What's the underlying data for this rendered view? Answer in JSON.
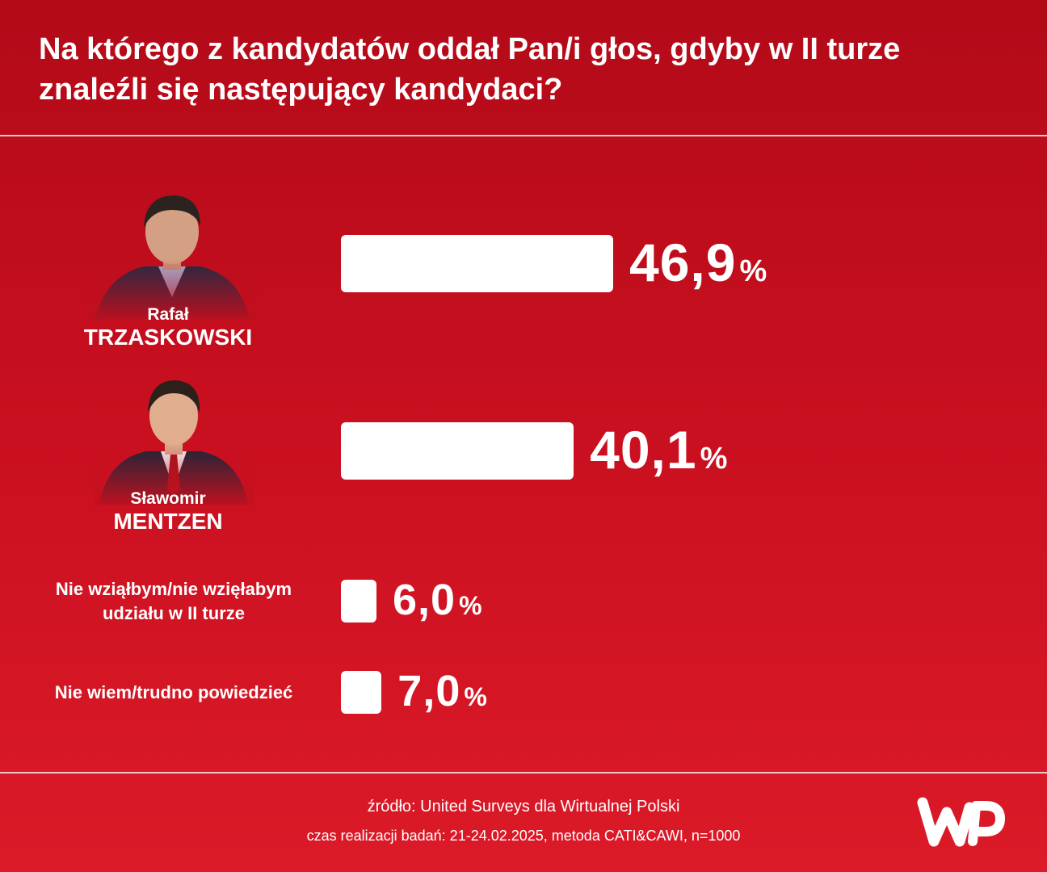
{
  "header": {
    "title_line1": "Na którego z kandydatów oddał Pan/i głos, gdyby w II turze",
    "title_line2": "znaleźli się następujący kandydaci?"
  },
  "chart_data": {
    "type": "bar",
    "orientation": "horizontal",
    "categories": [
      "Rafał TRZASKOWSKI",
      "Sławomir MENTZEN",
      "Nie wziąłbym/nie wzięłabym udziału w II turze",
      "Nie wiem/trudno powiedzieć"
    ],
    "values": [
      46.9,
      40.1,
      6.0,
      7.0
    ],
    "value_labels": [
      "46,9",
      "40,1",
      "6,0",
      "7,0"
    ],
    "unit": "%",
    "bar_color": "#ffffff",
    "background_color": "#c70f1f"
  },
  "candidates": [
    {
      "first_name": "Rafał",
      "last_name": "TRZASKOWSKI"
    },
    {
      "first_name": "Sławomir",
      "last_name": "MENTZEN"
    }
  ],
  "other_rows": [
    {
      "line1": "Nie wziąłbym/nie wzięłabym",
      "line2": "udziału w II turze"
    },
    {
      "line1": "Nie wiem/trudno powiedzieć"
    }
  ],
  "footer": {
    "source": "źródło: United Surveys dla Wirtualnej Polski",
    "method": "czas realizacji badań: 21-24.02.2025, metoda CATI&CAWI, n=1000"
  },
  "icons": {
    "logo": "wp-logo-icon",
    "portraits": [
      "candidate-portrait-icon",
      "candidate-portrait-icon"
    ]
  }
}
